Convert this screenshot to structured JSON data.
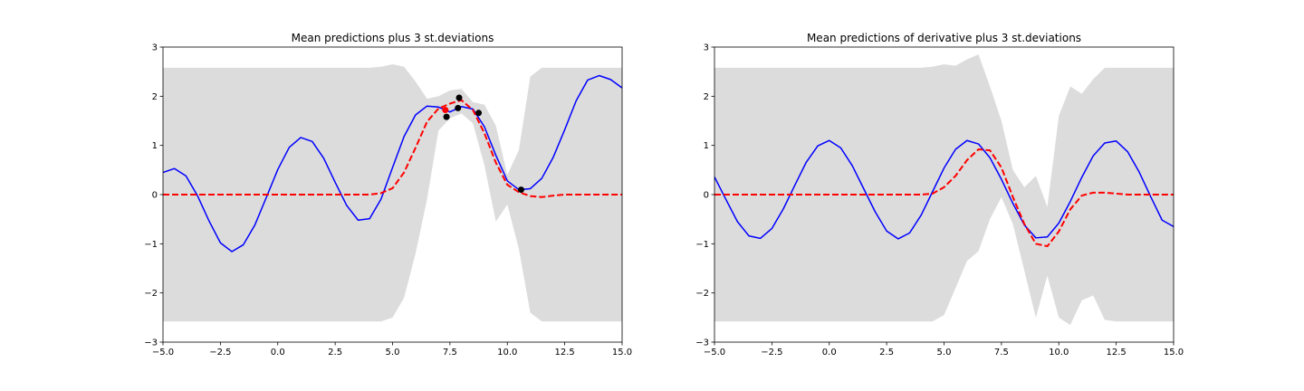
{
  "chart_data": [
    {
      "type": "line",
      "title": "Mean predictions plus 3 st.deviations",
      "xlabel": "",
      "ylabel": "",
      "xlim": [
        -5,
        15
      ],
      "ylim": [
        -3,
        3
      ],
      "xticks": [
        "−5.0",
        "−2.5",
        "0.0",
        "2.5",
        "5.0",
        "7.5",
        "10.0",
        "12.5",
        "15.0"
      ],
      "yticks": [
        "−3",
        "−2",
        "−1",
        "0",
        "1",
        "2",
        "3"
      ],
      "grid": false,
      "colors": {
        "band": "#dcdcdc",
        "true": "#0000ff",
        "mean": "#ff0000",
        "obs_black": "#000000",
        "obs_red": "#ff0000"
      },
      "x": [
        -5.0,
        -4.5,
        -4.0,
        -3.5,
        -3.0,
        -2.5,
        -2.0,
        -1.5,
        -1.0,
        -0.5,
        0.0,
        0.5,
        1.0,
        1.5,
        2.0,
        2.5,
        3.0,
        3.5,
        4.0,
        4.5,
        5.0,
        5.5,
        6.0,
        6.5,
        7.0,
        7.5,
        8.0,
        8.5,
        9.0,
        9.5,
        10.0,
        10.5,
        11.0,
        11.5,
        12.0,
        12.5,
        13.0,
        13.5,
        14.0,
        14.5,
        15.0
      ],
      "series": [
        {
          "role": "true-function",
          "style": "solid",
          "values": [
            0.45,
            0.53,
            0.38,
            -0.02,
            -0.53,
            -0.98,
            -1.16,
            -1.02,
            -0.62,
            -0.06,
            0.51,
            0.96,
            1.16,
            1.08,
            0.74,
            0.25,
            -0.22,
            -0.52,
            -0.49,
            -0.09,
            0.55,
            1.18,
            1.62,
            1.8,
            1.78,
            1.68,
            1.79,
            1.74,
            1.38,
            0.8,
            0.28,
            0.1,
            0.12,
            0.33,
            0.76,
            1.32,
            1.91,
            2.33,
            2.42,
            2.34,
            2.17
          ]
        },
        {
          "role": "mean-prediction",
          "style": "dashed",
          "values": [
            0,
            0,
            0,
            0,
            0,
            0,
            0,
            0,
            0,
            0,
            0,
            0,
            0,
            0,
            0,
            0,
            0,
            0,
            0,
            0.03,
            0.13,
            0.45,
            0.95,
            1.48,
            1.75,
            1.85,
            1.92,
            1.72,
            1.25,
            0.65,
            0.2,
            0.05,
            -0.03,
            -0.05,
            -0.02,
            0,
            0,
            0,
            0,
            0,
            0
          ]
        },
        {
          "role": "upper-band",
          "values": [
            2.58,
            2.58,
            2.58,
            2.58,
            2.58,
            2.58,
            2.58,
            2.58,
            2.58,
            2.58,
            2.58,
            2.58,
            2.58,
            2.58,
            2.58,
            2.58,
            2.58,
            2.58,
            2.58,
            2.6,
            2.65,
            2.6,
            2.3,
            1.95,
            2.0,
            2.12,
            2.15,
            1.88,
            1.83,
            1.4,
            0.4,
            0.9,
            2.4,
            2.58,
            2.58,
            2.58,
            2.58,
            2.58,
            2.58,
            2.58,
            2.58
          ]
        },
        {
          "role": "lower-band",
          "values": [
            -2.58,
            -2.58,
            -2.58,
            -2.58,
            -2.58,
            -2.58,
            -2.58,
            -2.58,
            -2.58,
            -2.58,
            -2.58,
            -2.58,
            -2.58,
            -2.58,
            -2.58,
            -2.58,
            -2.58,
            -2.58,
            -2.58,
            -2.58,
            -2.5,
            -2.1,
            -1.2,
            -0.1,
            1.3,
            1.55,
            1.65,
            1.45,
            0.6,
            -0.55,
            -0.2,
            -1.1,
            -2.4,
            -2.58,
            -2.58,
            -2.58,
            -2.58,
            -2.58,
            -2.58,
            -2.58,
            -2.58
          ]
        }
      ],
      "points": [
        {
          "x": 7.3,
          "y": 1.72,
          "color": "#ff0000"
        },
        {
          "x": 7.35,
          "y": 1.58,
          "color": "#000000"
        },
        {
          "x": 7.85,
          "y": 1.76,
          "color": "#000000"
        },
        {
          "x": 7.9,
          "y": 1.97,
          "color": "#000000"
        },
        {
          "x": 8.75,
          "y": 1.66,
          "color": "#000000"
        },
        {
          "x": 10.6,
          "y": 0.1,
          "color": "#000000"
        }
      ]
    },
    {
      "type": "line",
      "title": "Mean predictions of derivative plus 3 st.deviations",
      "xlabel": "",
      "ylabel": "",
      "xlim": [
        -5,
        15
      ],
      "ylim": [
        -3,
        3
      ],
      "xticks": [
        "−5.0",
        "−2.5",
        "0.0",
        "2.5",
        "5.0",
        "7.5",
        "10.0",
        "12.5",
        "15.0"
      ],
      "yticks": [
        "−3",
        "−2",
        "−1",
        "0",
        "1",
        "2",
        "3"
      ],
      "grid": false,
      "colors": {
        "band": "#dcdcdc",
        "true": "#0000ff",
        "mean": "#ff0000"
      },
      "x": [
        -5.0,
        -4.5,
        -4.0,
        -3.5,
        -3.0,
        -2.5,
        -2.0,
        -1.5,
        -1.0,
        -0.5,
        0.0,
        0.5,
        1.0,
        1.5,
        2.0,
        2.5,
        3.0,
        3.5,
        4.0,
        4.5,
        5.0,
        5.5,
        6.0,
        6.5,
        7.0,
        7.5,
        8.0,
        8.5,
        9.0,
        9.5,
        10.0,
        10.5,
        11.0,
        11.5,
        12.0,
        12.5,
        13.0,
        13.5,
        14.0,
        14.5,
        15.0
      ],
      "series": [
        {
          "role": "true-derivative",
          "style": "solid",
          "values": [
            0.36,
            -0.1,
            -0.55,
            -0.84,
            -0.89,
            -0.69,
            -0.29,
            0.19,
            0.66,
            0.99,
            1.1,
            0.95,
            0.59,
            0.12,
            -0.35,
            -0.74,
            -0.9,
            -0.78,
            -0.42,
            0.06,
            0.54,
            0.92,
            1.1,
            1.03,
            0.75,
            0.31,
            -0.18,
            -0.62,
            -0.88,
            -0.86,
            -0.58,
            -0.14,
            0.35,
            0.79,
            1.05,
            1.09,
            0.87,
            0.46,
            -0.04,
            -0.52,
            -0.65
          ]
        },
        {
          "role": "mean-derivative",
          "style": "dashed",
          "values": [
            0,
            0,
            0,
            0,
            0,
            0,
            0,
            0,
            0,
            0,
            0,
            0,
            0,
            0,
            0,
            0,
            0,
            0,
            0,
            0.02,
            0.15,
            0.38,
            0.7,
            0.92,
            0.9,
            0.55,
            -0.05,
            -0.6,
            -1.0,
            -1.05,
            -0.75,
            -0.3,
            -0.02,
            0.04,
            0.04,
            0.02,
            0,
            0,
            0,
            0,
            0
          ]
        },
        {
          "role": "upper-band",
          "values": [
            2.58,
            2.58,
            2.58,
            2.58,
            2.58,
            2.58,
            2.58,
            2.58,
            2.58,
            2.58,
            2.58,
            2.58,
            2.58,
            2.58,
            2.58,
            2.58,
            2.58,
            2.58,
            2.58,
            2.6,
            2.65,
            2.62,
            2.75,
            2.85,
            2.2,
            1.5,
            0.5,
            0.15,
            0.38,
            -0.25,
            1.6,
            2.2,
            2.05,
            2.35,
            2.58,
            2.58,
            2.58,
            2.58,
            2.58,
            2.58,
            2.58
          ]
        },
        {
          "role": "lower-band",
          "values": [
            -2.58,
            -2.58,
            -2.58,
            -2.58,
            -2.58,
            -2.58,
            -2.58,
            -2.58,
            -2.58,
            -2.58,
            -2.58,
            -2.58,
            -2.58,
            -2.58,
            -2.58,
            -2.58,
            -2.58,
            -2.58,
            -2.58,
            -2.58,
            -2.45,
            -1.9,
            -1.35,
            -1.15,
            -0.5,
            -0.05,
            -0.6,
            -1.55,
            -2.5,
            -1.65,
            -2.5,
            -2.65,
            -2.15,
            -2.05,
            -2.55,
            -2.58,
            -2.58,
            -2.58,
            -2.58,
            -2.58,
            -2.58
          ]
        }
      ],
      "points": []
    }
  ]
}
